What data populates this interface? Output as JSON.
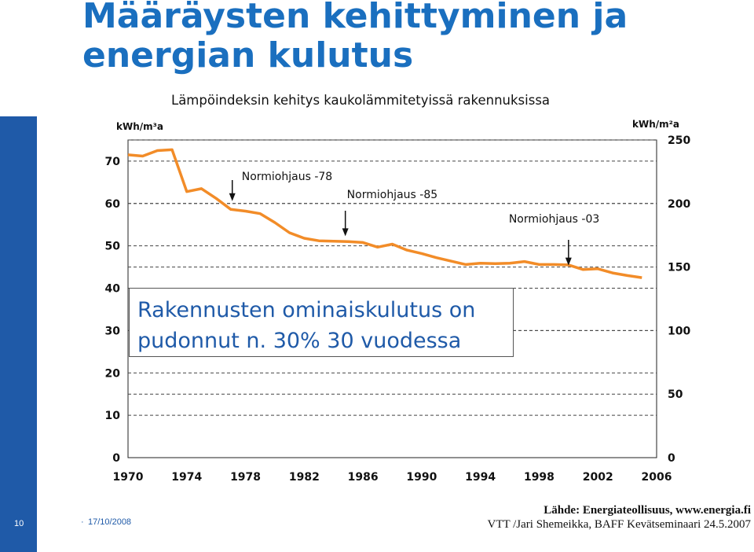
{
  "slide": {
    "title_line1": "Määräysten kehittyminen ja",
    "title_line2": "energian kulutus",
    "number": "10",
    "date": "17/10/2008",
    "source_line1": "Lähde: Energiateollisuus, www.energia.fi",
    "source_line2": "VTT /Jari Shemeikka, BAFF Kevätseminaari 24.5.2007",
    "accent_color": "#1f5aa8"
  },
  "chart_data": {
    "type": "line",
    "title": "Lämpöindeksin kehitys kaukolämmitetyissä rakennuksissa",
    "ylabel_left": "kWh/m³a",
    "ylabel_right": "kWh/m²a",
    "xlim": [
      1970,
      2006
    ],
    "ylim_left": [
      0,
      75
    ],
    "ylim_right": [
      0,
      250
    ],
    "x_ticks": [
      "1970",
      "1974",
      "1978",
      "1982",
      "1986",
      "1990",
      "1994",
      "1998",
      "2002",
      "2006"
    ],
    "y_ticks_left": [
      "0",
      "10",
      "20",
      "30",
      "40",
      "50",
      "60",
      "70"
    ],
    "y_ticks_right": [
      "0",
      "50",
      "100",
      "150",
      "200",
      "250"
    ],
    "grid": "horizontal-dashed",
    "line_color": "#f28c28",
    "series": [
      {
        "x": [
          1970,
          1971,
          1972,
          1973,
          1974,
          1975,
          1976,
          1977,
          1978,
          1979,
          1980,
          1981,
          1982,
          1983,
          1984,
          1985,
          1986,
          1987,
          1988,
          1989,
          1990,
          1991,
          1992,
          1993,
          1994,
          1995,
          1996,
          1997,
          1998,
          1999,
          2000,
          2001,
          2002,
          2003,
          2004,
          2005
        ],
        "y": [
          71.5,
          71.2,
          72.5,
          72.7,
          62.8,
          63.5,
          61.2,
          58.6,
          58.2,
          57.6,
          55.5,
          53.1,
          51.8,
          51.2,
          51.1,
          51.0,
          50.8,
          49.7,
          50.4,
          49.0,
          48.2,
          47.2,
          46.4,
          45.6,
          45.9,
          45.8,
          45.9,
          46.3,
          45.6,
          45.6,
          45.5,
          44.4,
          44.6,
          43.6,
          43.0,
          42.5
        ]
      }
    ],
    "annotations": [
      {
        "label": "Normiohjaus -78",
        "x": 1977.1,
        "y": 60.2
      },
      {
        "label": "Normiohjaus -85",
        "x": 1984.8,
        "y": 51.9
      },
      {
        "label": "Normiohjaus -03",
        "x": 2000.0,
        "y": 45.0
      }
    ],
    "callout_line1": "Rakennusten ominaiskulutus on",
    "callout_line2": "pudonnut n. 30% 30 vuodessa"
  }
}
